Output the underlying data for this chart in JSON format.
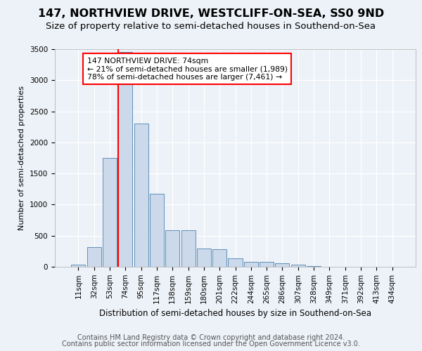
{
  "title1": "147, NORTHVIEW DRIVE, WESTCLIFF-ON-SEA, SS0 9ND",
  "title2": "Size of property relative to semi-detached houses in Southend-on-Sea",
  "xlabel": "Distribution of semi-detached houses by size in Southend-on-Sea",
  "ylabel": "Number of semi-detached properties",
  "footnote1": "Contains HM Land Registry data © Crown copyright and database right 2024.",
  "footnote2": "Contains public sector information licensed under the Open Government Licence v3.0.",
  "categories": [
    "11sqm",
    "32sqm",
    "53sqm",
    "74sqm",
    "95sqm",
    "117sqm",
    "138sqm",
    "159sqm",
    "180sqm",
    "201sqm",
    "222sqm",
    "244sqm",
    "265sqm",
    "286sqm",
    "307sqm",
    "328sqm",
    "349sqm",
    "371sqm",
    "392sqm",
    "413sqm",
    "434sqm"
  ],
  "values": [
    30,
    320,
    1750,
    3450,
    2300,
    1175,
    590,
    590,
    290,
    285,
    130,
    80,
    80,
    55,
    30,
    8,
    3,
    0,
    0,
    0,
    0
  ],
  "bar_color": "#ccd9ea",
  "bar_edge_color": "#6090b8",
  "vline_color": "red",
  "vline_x_index": 3,
  "annotation_text": "147 NORTHVIEW DRIVE: 74sqm\n← 21% of semi-detached houses are smaller (1,989)\n78% of semi-detached houses are larger (7,461) →",
  "annotation_box_color": "white",
  "annotation_box_edge_color": "red",
  "ylim_max": 3500,
  "yticks": [
    0,
    500,
    1000,
    1500,
    2000,
    2500,
    3000,
    3500
  ],
  "background_color": "#edf2f8",
  "plot_bg_color": "#edf2f8",
  "title1_fontsize": 11.5,
  "title2_fontsize": 9.5,
  "xlabel_fontsize": 8.5,
  "ylabel_fontsize": 8,
  "tick_fontsize": 7.5,
  "annotation_fontsize": 7.8,
  "footnote_fontsize": 7
}
